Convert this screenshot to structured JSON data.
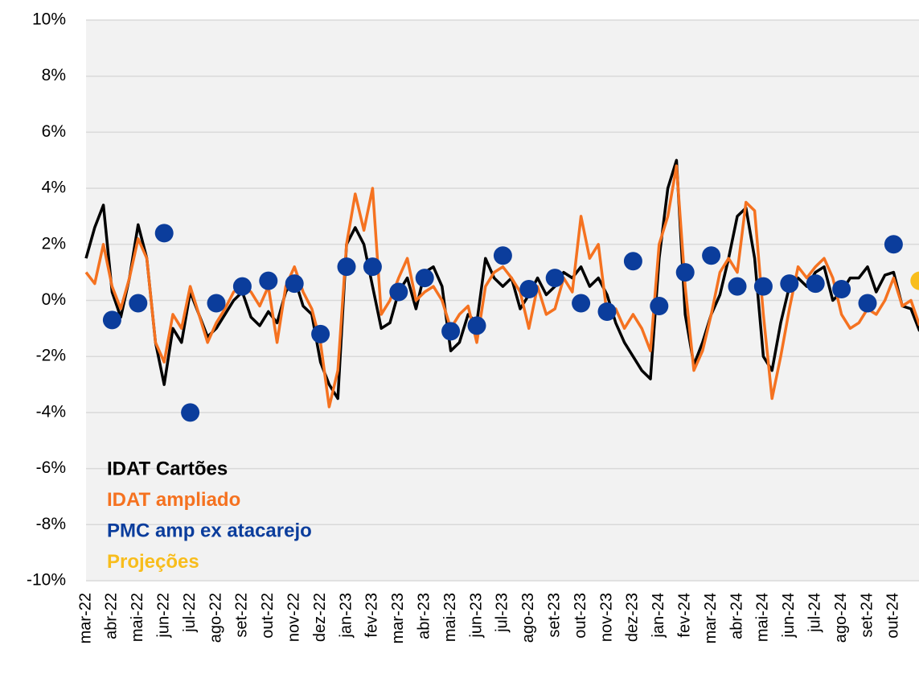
{
  "chart_data": {
    "type": "line",
    "categories": [
      "mar-22",
      null,
      null,
      "abr-22",
      null,
      null,
      "mai-22",
      null,
      null,
      "jun-22",
      null,
      null,
      "jul-22",
      null,
      null,
      "ago-22",
      null,
      null,
      "set-22",
      null,
      null,
      "out-22",
      null,
      null,
      "nov-22",
      null,
      null,
      "dez-22",
      null,
      null,
      "jan-23",
      null,
      null,
      "fev-23",
      null,
      null,
      "mar-23",
      null,
      null,
      "abr-23",
      null,
      null,
      "mai-23",
      null,
      null,
      "jun-23",
      null,
      null,
      "jul-23",
      null,
      null,
      "ago-23",
      null,
      null,
      "set-23",
      null,
      null,
      "out-23",
      null,
      null,
      "nov-23",
      null,
      null,
      "dez-23",
      null,
      null,
      "jan-24",
      null,
      null,
      "fev-24",
      null,
      null,
      "mar-24",
      null,
      null,
      "abr-24",
      null,
      null,
      "mai-24",
      null,
      null,
      "jun-24",
      null,
      null,
      "jul-24",
      null,
      null,
      "ago-24",
      null,
      null,
      "set-24",
      null,
      null,
      "out-24",
      null,
      null,
      null
    ],
    "series": [
      {
        "name": "IDAT Cartões",
        "color": "#000000",
        "kind": "line",
        "values": [
          1.5,
          2.6,
          3.4,
          0.3,
          -0.6,
          0.8,
          2.7,
          1.5,
          -1.5,
          -3.0,
          -1.0,
          -1.5,
          0.3,
          -0.5,
          -1.3,
          -1.0,
          -0.5,
          0.0,
          0.3,
          -0.6,
          -0.9,
          -0.4,
          -0.8,
          0.3,
          0.8,
          -0.2,
          -0.5,
          -2.2,
          -3.0,
          -3.5,
          2.0,
          2.6,
          2.0,
          0.5,
          -1.0,
          -0.8,
          0.3,
          0.8,
          -0.3,
          1.0,
          1.2,
          0.5,
          -1.8,
          -1.5,
          -0.5,
          -0.8,
          1.5,
          0.8,
          0.5,
          0.8,
          -0.3,
          0.2,
          0.8,
          0.2,
          0.5,
          1.0,
          0.8,
          1.2,
          0.5,
          0.8,
          0.2,
          -0.8,
          -1.5,
          -2.0,
          -2.5,
          -2.8,
          1.5,
          4.0,
          5.0,
          -0.5,
          -2.3,
          -1.5,
          -0.5,
          0.2,
          1.5,
          3.0,
          3.3,
          1.5,
          -2.0,
          -2.5,
          -0.8,
          0.5,
          0.8,
          0.5,
          1.0,
          1.2,
          0.0,
          0.3,
          0.8,
          0.8,
          1.2,
          0.3,
          0.9,
          1.0,
          -0.2,
          -0.3,
          -1.1
        ]
      },
      {
        "name": "IDAT ampliado",
        "color": "#f57220",
        "kind": "line",
        "values": [
          1.0,
          0.6,
          2.0,
          0.5,
          -0.3,
          0.8,
          2.2,
          1.5,
          -1.5,
          -2.2,
          -0.5,
          -1.0,
          0.5,
          -0.5,
          -1.5,
          -0.8,
          -0.3,
          0.3,
          0.5,
          0.3,
          -0.2,
          0.5,
          -1.5,
          0.5,
          1.2,
          0.3,
          -0.3,
          -1.5,
          -3.8,
          -2.5,
          2.0,
          3.8,
          2.5,
          4.0,
          -0.5,
          0.0,
          0.8,
          1.5,
          0.0,
          0.3,
          0.5,
          0.0,
          -1.0,
          -0.5,
          -0.2,
          -1.5,
          0.5,
          1.0,
          1.2,
          0.8,
          0.3,
          -1.0,
          0.5,
          -0.5,
          -0.3,
          0.8,
          0.3,
          3.0,
          1.5,
          2.0,
          -0.5,
          -0.3,
          -1.0,
          -0.5,
          -1.0,
          -1.8,
          2.0,
          3.0,
          4.8,
          0.5,
          -2.5,
          -1.8,
          -0.5,
          1.0,
          1.5,
          1.0,
          3.5,
          3.2,
          -0.5,
          -3.5,
          -2.0,
          -0.3,
          1.2,
          0.8,
          1.2,
          1.5,
          0.8,
          -0.5,
          -1.0,
          -0.8,
          -0.3,
          -0.5,
          0.0,
          0.8,
          -0.2,
          0.0,
          -0.9
        ]
      },
      {
        "name": "PMC amp ex atacarejo",
        "color": "#0b3d9c",
        "kind": "dot",
        "values": [
          null,
          null,
          null,
          -0.7,
          null,
          null,
          -0.1,
          null,
          null,
          2.4,
          null,
          null,
          -4.0,
          null,
          null,
          -0.1,
          null,
          null,
          0.5,
          null,
          null,
          0.7,
          null,
          null,
          0.6,
          null,
          null,
          -1.2,
          null,
          null,
          1.2,
          null,
          null,
          1.2,
          null,
          null,
          0.3,
          null,
          null,
          0.8,
          null,
          null,
          -1.1,
          null,
          null,
          -0.9,
          null,
          null,
          1.6,
          null,
          null,
          0.4,
          null,
          null,
          0.8,
          null,
          null,
          -0.1,
          null,
          null,
          -0.4,
          null,
          null,
          1.4,
          null,
          null,
          -0.2,
          null,
          null,
          1.0,
          null,
          null,
          1.6,
          null,
          null,
          0.5,
          null,
          null,
          0.5,
          null,
          null,
          0.6,
          null,
          null,
          0.6,
          null,
          null,
          0.4,
          null,
          null,
          -0.1,
          null,
          null,
          2.0,
          null,
          null,
          null
        ]
      },
      {
        "name": "Projeções",
        "color": "#f8bd1c",
        "kind": "dot",
        "values": [
          null,
          null,
          null,
          null,
          null,
          null,
          null,
          null,
          null,
          null,
          null,
          null,
          null,
          null,
          null,
          null,
          null,
          null,
          null,
          null,
          null,
          null,
          null,
          null,
          null,
          null,
          null,
          null,
          null,
          null,
          null,
          null,
          null,
          null,
          null,
          null,
          null,
          null,
          null,
          null,
          null,
          null,
          null,
          null,
          null,
          null,
          null,
          null,
          null,
          null,
          null,
          null,
          null,
          null,
          null,
          null,
          null,
          null,
          null,
          null,
          null,
          null,
          null,
          null,
          null,
          null,
          null,
          null,
          null,
          null,
          null,
          null,
          null,
          null,
          null,
          null,
          null,
          null,
          null,
          null,
          null,
          null,
          null,
          null,
          null,
          null,
          null,
          null,
          null,
          null,
          null,
          null,
          null,
          null,
          null,
          null,
          0.7
        ]
      }
    ],
    "ylim": [
      -10,
      10
    ],
    "yticks": [
      {
        "value": -10,
        "label": "-10%"
      },
      {
        "value": -8,
        "label": "-8%"
      },
      {
        "value": -6,
        "label": "-6%"
      },
      {
        "value": -4,
        "label": "-4%"
      },
      {
        "value": -2,
        "label": "-2%"
      },
      {
        "value": 0,
        "label": "0%"
      },
      {
        "value": 2,
        "label": "2%"
      },
      {
        "value": 4,
        "label": "4%"
      },
      {
        "value": 6,
        "label": "6%"
      },
      {
        "value": 8,
        "label": "8%"
      },
      {
        "value": 10,
        "label": "10%"
      }
    ],
    "grid": true,
    "legend": "lower left"
  }
}
